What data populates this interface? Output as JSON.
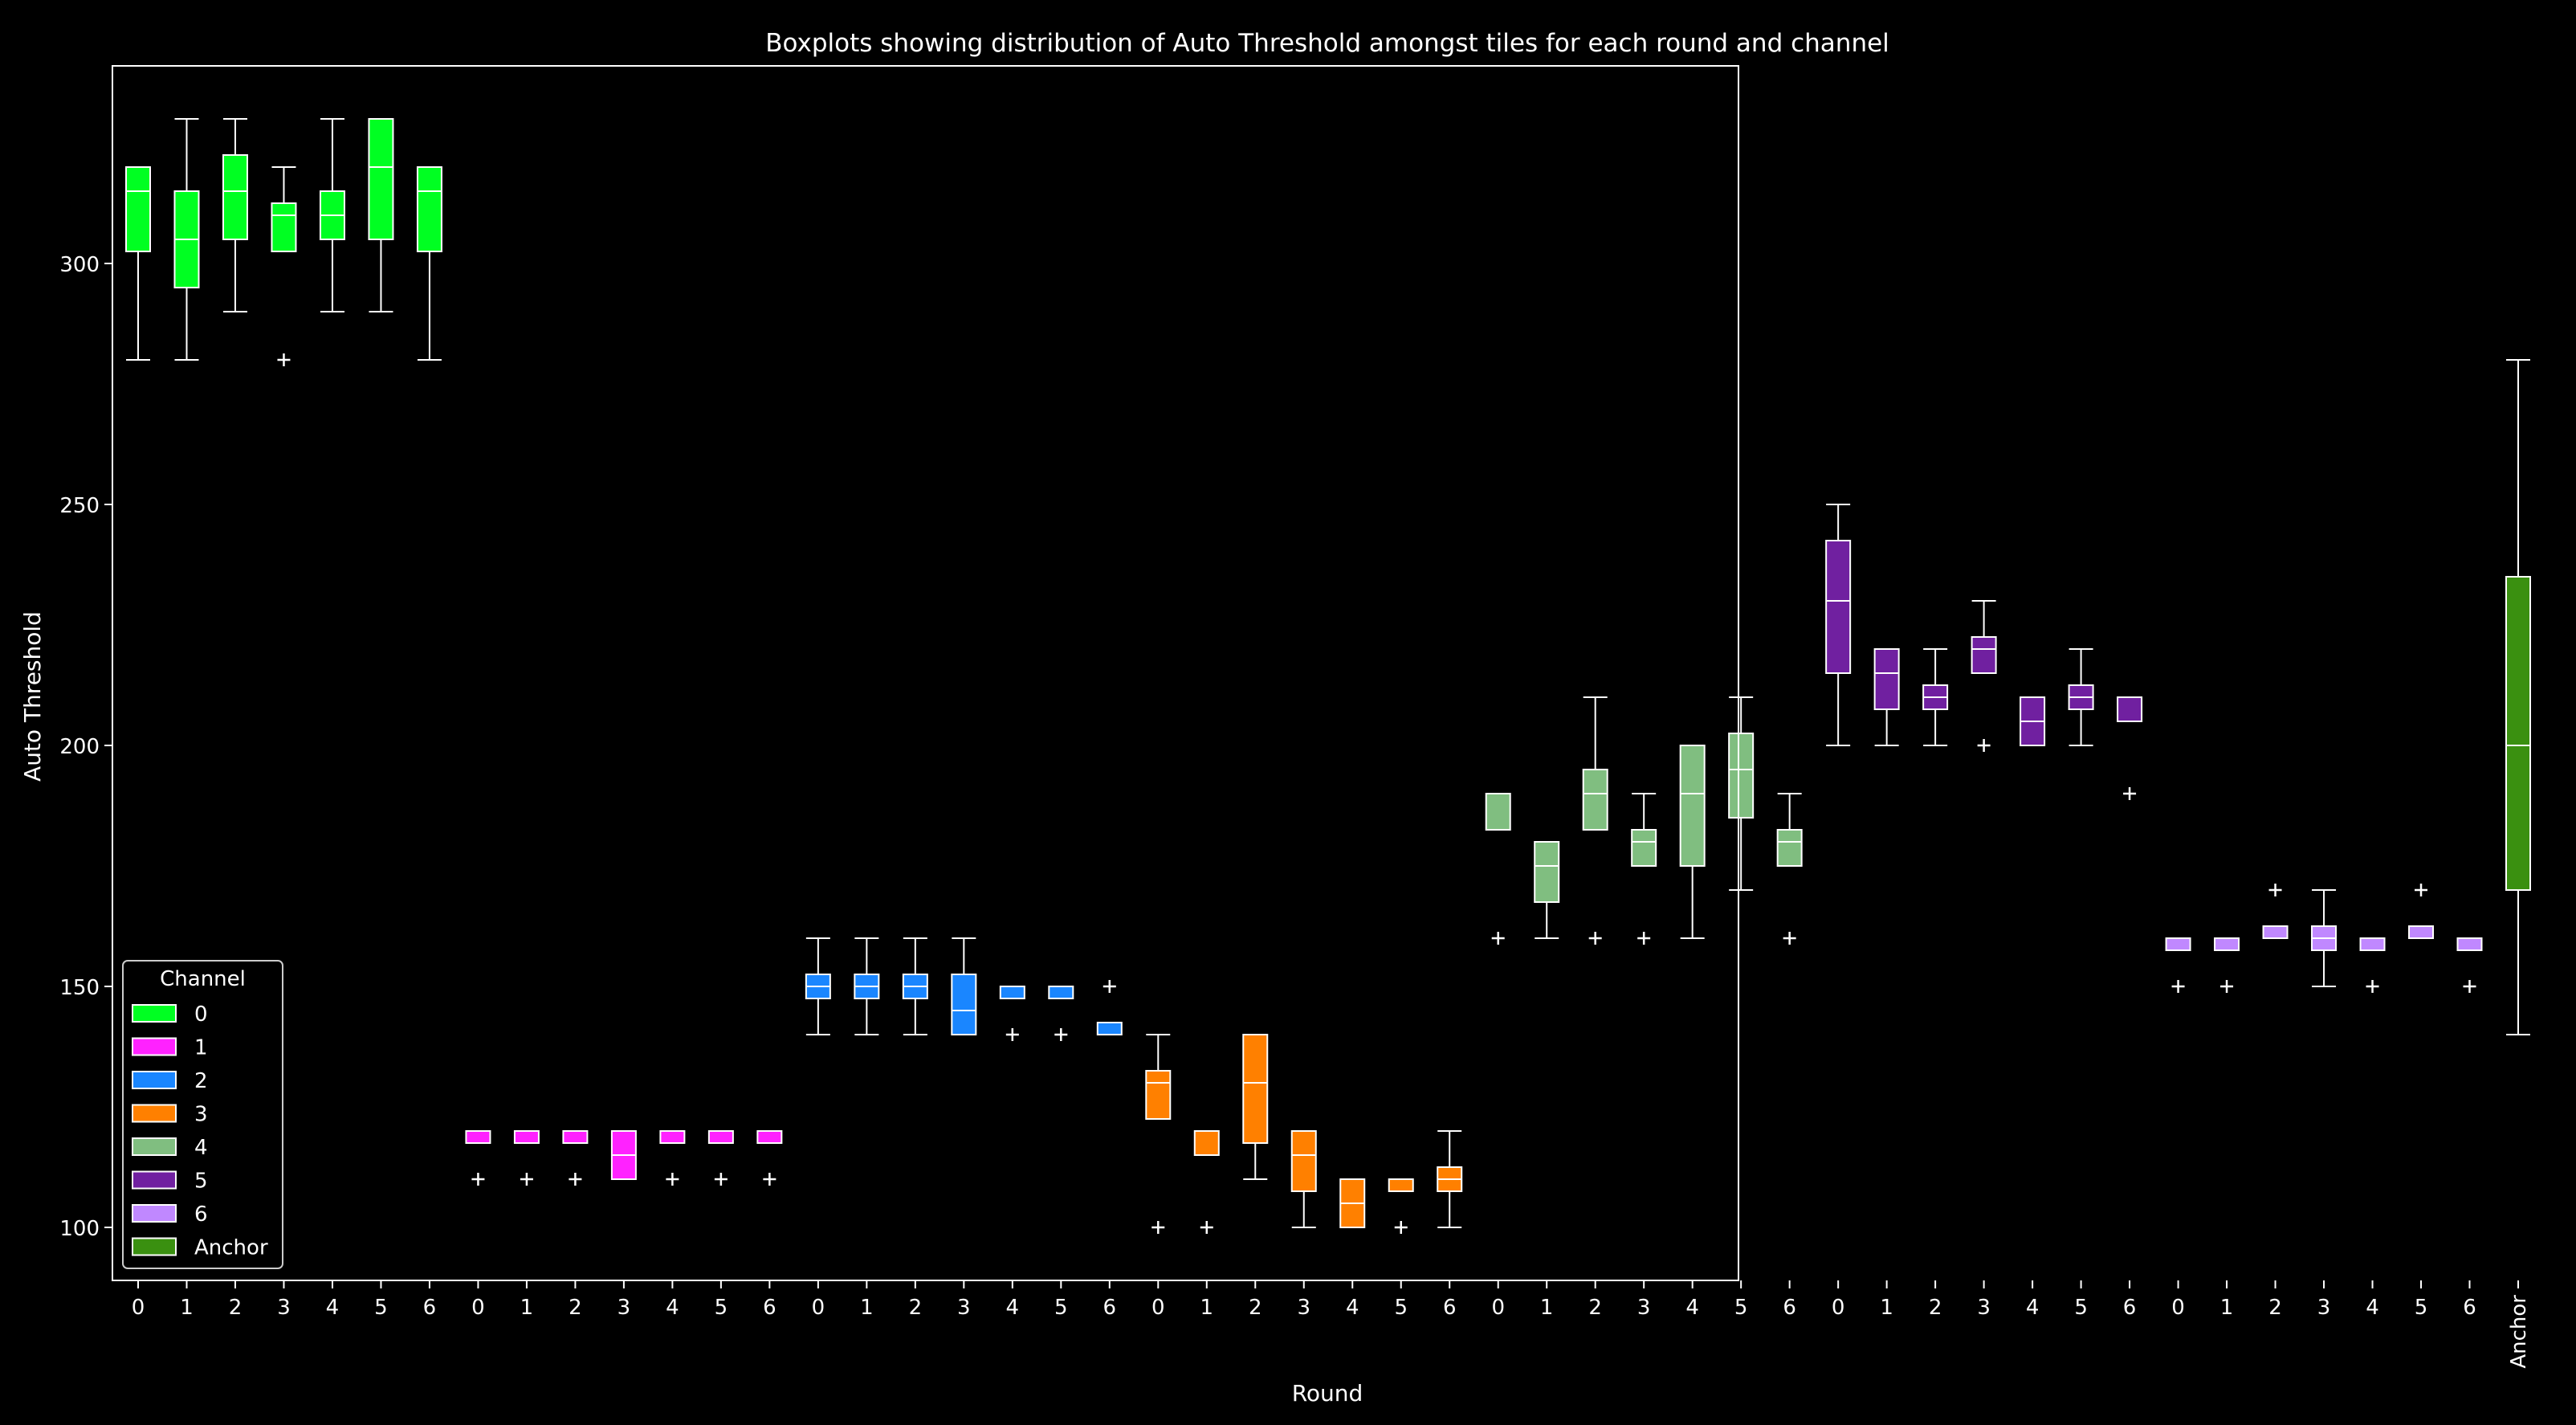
{
  "chart_data": {
    "type": "boxplot",
    "title": "Boxplots showing distribution of Auto Threshold amongst tiles for each round and channel",
    "xlabel": "Round",
    "ylabel": "Auto Threshold",
    "ylim": [
      89,
      341
    ],
    "yticks": [
      100,
      150,
      200,
      250,
      300
    ],
    "grid": false,
    "legend": {
      "title": "Channel",
      "placement": "bottom-left",
      "entries": [
        {
          "label": "0",
          "color": "#00ff22"
        },
        {
          "label": "1",
          "color": "#ff22ff"
        },
        {
          "label": "2",
          "color": "#1a86ff"
        },
        {
          "label": "3",
          "color": "#ff8000"
        },
        {
          "label": "4",
          "color": "#80be80"
        },
        {
          "label": "5",
          "color": "#7020a0"
        },
        {
          "label": "6",
          "color": "#c088ff"
        },
        {
          "label": "Anchor",
          "color": "#3a9010"
        }
      ]
    },
    "groups": [
      {
        "channel": "0",
        "color": "#00ff22",
        "boxes": [
          {
            "round": "0",
            "whislo": 280,
            "q1": 302.5,
            "med": 315,
            "q3": 320,
            "whishi": 320,
            "fliers": []
          },
          {
            "round": "1",
            "whislo": 280,
            "q1": 295,
            "med": 305,
            "q3": 315,
            "whishi": 330,
            "fliers": []
          },
          {
            "round": "2",
            "whislo": 290,
            "q1": 305,
            "med": 315,
            "q3": 322.5,
            "whishi": 330,
            "fliers": []
          },
          {
            "round": "3",
            "whislo": 302.5,
            "q1": 302.5,
            "med": 310,
            "q3": 312.5,
            "whishi": 320,
            "fliers": [
              280
            ]
          },
          {
            "round": "4",
            "whislo": 290,
            "q1": 305,
            "med": 310,
            "q3": 315,
            "whishi": 330,
            "fliers": []
          },
          {
            "round": "5",
            "whislo": 290,
            "q1": 305,
            "med": 320,
            "q3": 330,
            "whishi": 330,
            "fliers": []
          },
          {
            "round": "6",
            "whislo": 280,
            "q1": 302.5,
            "med": 315,
            "q3": 320,
            "whishi": 320,
            "fliers": []
          }
        ]
      },
      {
        "channel": "1",
        "color": "#ff22ff",
        "boxes": [
          {
            "round": "0",
            "whislo": 117.5,
            "q1": 117.5,
            "med": 120,
            "q3": 120,
            "whishi": 120,
            "fliers": [
              110
            ]
          },
          {
            "round": "1",
            "whislo": 117.5,
            "q1": 117.5,
            "med": 120,
            "q3": 120,
            "whishi": 120,
            "fliers": [
              110
            ]
          },
          {
            "round": "2",
            "whislo": 117.5,
            "q1": 117.5,
            "med": 120,
            "q3": 120,
            "whishi": 120,
            "fliers": [
              110
            ]
          },
          {
            "round": "3",
            "whislo": 110,
            "q1": 110,
            "med": 115,
            "q3": 120,
            "whishi": 120,
            "fliers": []
          },
          {
            "round": "4",
            "whislo": 117.5,
            "q1": 117.5,
            "med": 120,
            "q3": 120,
            "whishi": 120,
            "fliers": [
              110
            ]
          },
          {
            "round": "5",
            "whislo": 117.5,
            "q1": 117.5,
            "med": 120,
            "q3": 120,
            "whishi": 120,
            "fliers": [
              110
            ]
          },
          {
            "round": "6",
            "whislo": 117.5,
            "q1": 117.5,
            "med": 120,
            "q3": 120,
            "whishi": 120,
            "fliers": [
              110
            ]
          }
        ]
      },
      {
        "channel": "2",
        "color": "#1a86ff",
        "boxes": [
          {
            "round": "0",
            "whislo": 140,
            "q1": 147.5,
            "med": 150,
            "q3": 152.5,
            "whishi": 160,
            "fliers": []
          },
          {
            "round": "1",
            "whislo": 140,
            "q1": 147.5,
            "med": 150,
            "q3": 152.5,
            "whishi": 160,
            "fliers": []
          },
          {
            "round": "2",
            "whislo": 140,
            "q1": 147.5,
            "med": 150,
            "q3": 152.5,
            "whishi": 160,
            "fliers": []
          },
          {
            "round": "3",
            "whislo": 140,
            "q1": 140,
            "med": 145,
            "q3": 152.5,
            "whishi": 160,
            "fliers": []
          },
          {
            "round": "4",
            "whislo": 147.5,
            "q1": 147.5,
            "med": 150,
            "q3": 150,
            "whishi": 150,
            "fliers": [
              140
            ]
          },
          {
            "round": "5",
            "whislo": 147.5,
            "q1": 147.5,
            "med": 150,
            "q3": 150,
            "whishi": 150,
            "fliers": [
              140
            ]
          },
          {
            "round": "6",
            "whislo": 140,
            "q1": 140,
            "med": 142.5,
            "q3": 142.5,
            "whishi": 142.5,
            "fliers": [
              150
            ]
          }
        ]
      },
      {
        "channel": "3",
        "color": "#ff8000",
        "boxes": [
          {
            "round": "0",
            "whislo": 122.5,
            "q1": 122.5,
            "med": 130,
            "q3": 132.5,
            "whishi": 140,
            "fliers": [
              100
            ]
          },
          {
            "round": "1",
            "whislo": 115,
            "q1": 115,
            "med": 120,
            "q3": 120,
            "whishi": 120,
            "fliers": [
              100
            ]
          },
          {
            "round": "2",
            "whislo": 110,
            "q1": 117.5,
            "med": 130,
            "q3": 140,
            "whishi": 140,
            "fliers": []
          },
          {
            "round": "3",
            "whislo": 100,
            "q1": 107.5,
            "med": 115,
            "q3": 120,
            "whishi": 120,
            "fliers": []
          },
          {
            "round": "4",
            "whislo": 100,
            "q1": 100,
            "med": 105,
            "q3": 110,
            "whishi": 110,
            "fliers": []
          },
          {
            "round": "5",
            "whislo": 107.5,
            "q1": 107.5,
            "med": 110,
            "q3": 110,
            "whishi": 110,
            "fliers": [
              100
            ]
          },
          {
            "round": "6",
            "whislo": 100,
            "q1": 107.5,
            "med": 110,
            "q3": 112.5,
            "whishi": 120,
            "fliers": []
          }
        ]
      },
      {
        "channel": "4",
        "color": "#80be80",
        "boxes": [
          {
            "round": "0",
            "whislo": 182.5,
            "q1": 182.5,
            "med": 190,
            "q3": 190,
            "whishi": 190,
            "fliers": [
              160
            ]
          },
          {
            "round": "1",
            "whislo": 160,
            "q1": 167.5,
            "med": 175,
            "q3": 180,
            "whishi": 180,
            "fliers": []
          },
          {
            "round": "2",
            "whislo": 182.5,
            "q1": 182.5,
            "med": 190,
            "q3": 195,
            "whishi": 210,
            "fliers": [
              160
            ]
          },
          {
            "round": "3",
            "whislo": 175,
            "q1": 175,
            "med": 180,
            "q3": 182.5,
            "whishi": 190,
            "fliers": [
              160
            ]
          },
          {
            "round": "4",
            "whislo": 160,
            "q1": 175,
            "med": 190,
            "q3": 200,
            "whishi": 200,
            "fliers": []
          },
          {
            "round": "5",
            "whislo": 170,
            "q1": 185,
            "med": 195,
            "q3": 202.5,
            "whishi": 210,
            "fliers": []
          },
          {
            "round": "6",
            "whislo": 175,
            "q1": 175,
            "med": 180,
            "q3": 182.5,
            "whishi": 190,
            "fliers": [
              160
            ]
          }
        ]
      },
      {
        "channel": "5",
        "color": "#7020a0",
        "boxes": [
          {
            "round": "0",
            "whislo": 200,
            "q1": 215,
            "med": 230,
            "q3": 242.5,
            "whishi": 250,
            "fliers": []
          },
          {
            "round": "1",
            "whislo": 200,
            "q1": 207.5,
            "med": 215,
            "q3": 220,
            "whishi": 220,
            "fliers": []
          },
          {
            "round": "2",
            "whislo": 200,
            "q1": 207.5,
            "med": 210,
            "q3": 212.5,
            "whishi": 220,
            "fliers": []
          },
          {
            "round": "3",
            "whislo": 215,
            "q1": 215,
            "med": 220,
            "q3": 222.5,
            "whishi": 230,
            "fliers": [
              200
            ]
          },
          {
            "round": "4",
            "whislo": 200,
            "q1": 200,
            "med": 205,
            "q3": 210,
            "whishi": 210,
            "fliers": []
          },
          {
            "round": "5",
            "whislo": 200,
            "q1": 207.5,
            "med": 210,
            "q3": 212.5,
            "whishi": 220,
            "fliers": []
          },
          {
            "round": "6",
            "whislo": 205,
            "q1": 205,
            "med": 210,
            "q3": 210,
            "whishi": 210,
            "fliers": [
              190
            ]
          }
        ]
      },
      {
        "channel": "6",
        "color": "#c088ff",
        "boxes": [
          {
            "round": "0",
            "whislo": 157.5,
            "q1": 157.5,
            "med": 160,
            "q3": 160,
            "whishi": 160,
            "fliers": [
              150
            ]
          },
          {
            "round": "1",
            "whislo": 157.5,
            "q1": 157.5,
            "med": 160,
            "q3": 160,
            "whishi": 160,
            "fliers": [
              150
            ]
          },
          {
            "round": "2",
            "whislo": 160,
            "q1": 160,
            "med": 160,
            "q3": 162.5,
            "whishi": 162.5,
            "fliers": [
              170
            ]
          },
          {
            "round": "3",
            "whislo": 150,
            "q1": 157.5,
            "med": 160,
            "q3": 162.5,
            "whishi": 170,
            "fliers": []
          },
          {
            "round": "4",
            "whislo": 157.5,
            "q1": 157.5,
            "med": 160,
            "q3": 160,
            "whishi": 160,
            "fliers": [
              150
            ]
          },
          {
            "round": "5",
            "whislo": 160,
            "q1": 160,
            "med": 160,
            "q3": 162.5,
            "whishi": 162.5,
            "fliers": [
              170
            ]
          },
          {
            "round": "6",
            "whislo": 157.5,
            "q1": 157.5,
            "med": 160,
            "q3": 160,
            "whishi": 160,
            "fliers": [
              150
            ]
          }
        ]
      },
      {
        "channel": "Anchor",
        "color": "#3a9010",
        "boxes": [
          {
            "round": "Anchor",
            "whislo": 140,
            "q1": 170,
            "med": 200,
            "q3": 235,
            "whishi": 280,
            "fliers": []
          }
        ]
      }
    ]
  }
}
